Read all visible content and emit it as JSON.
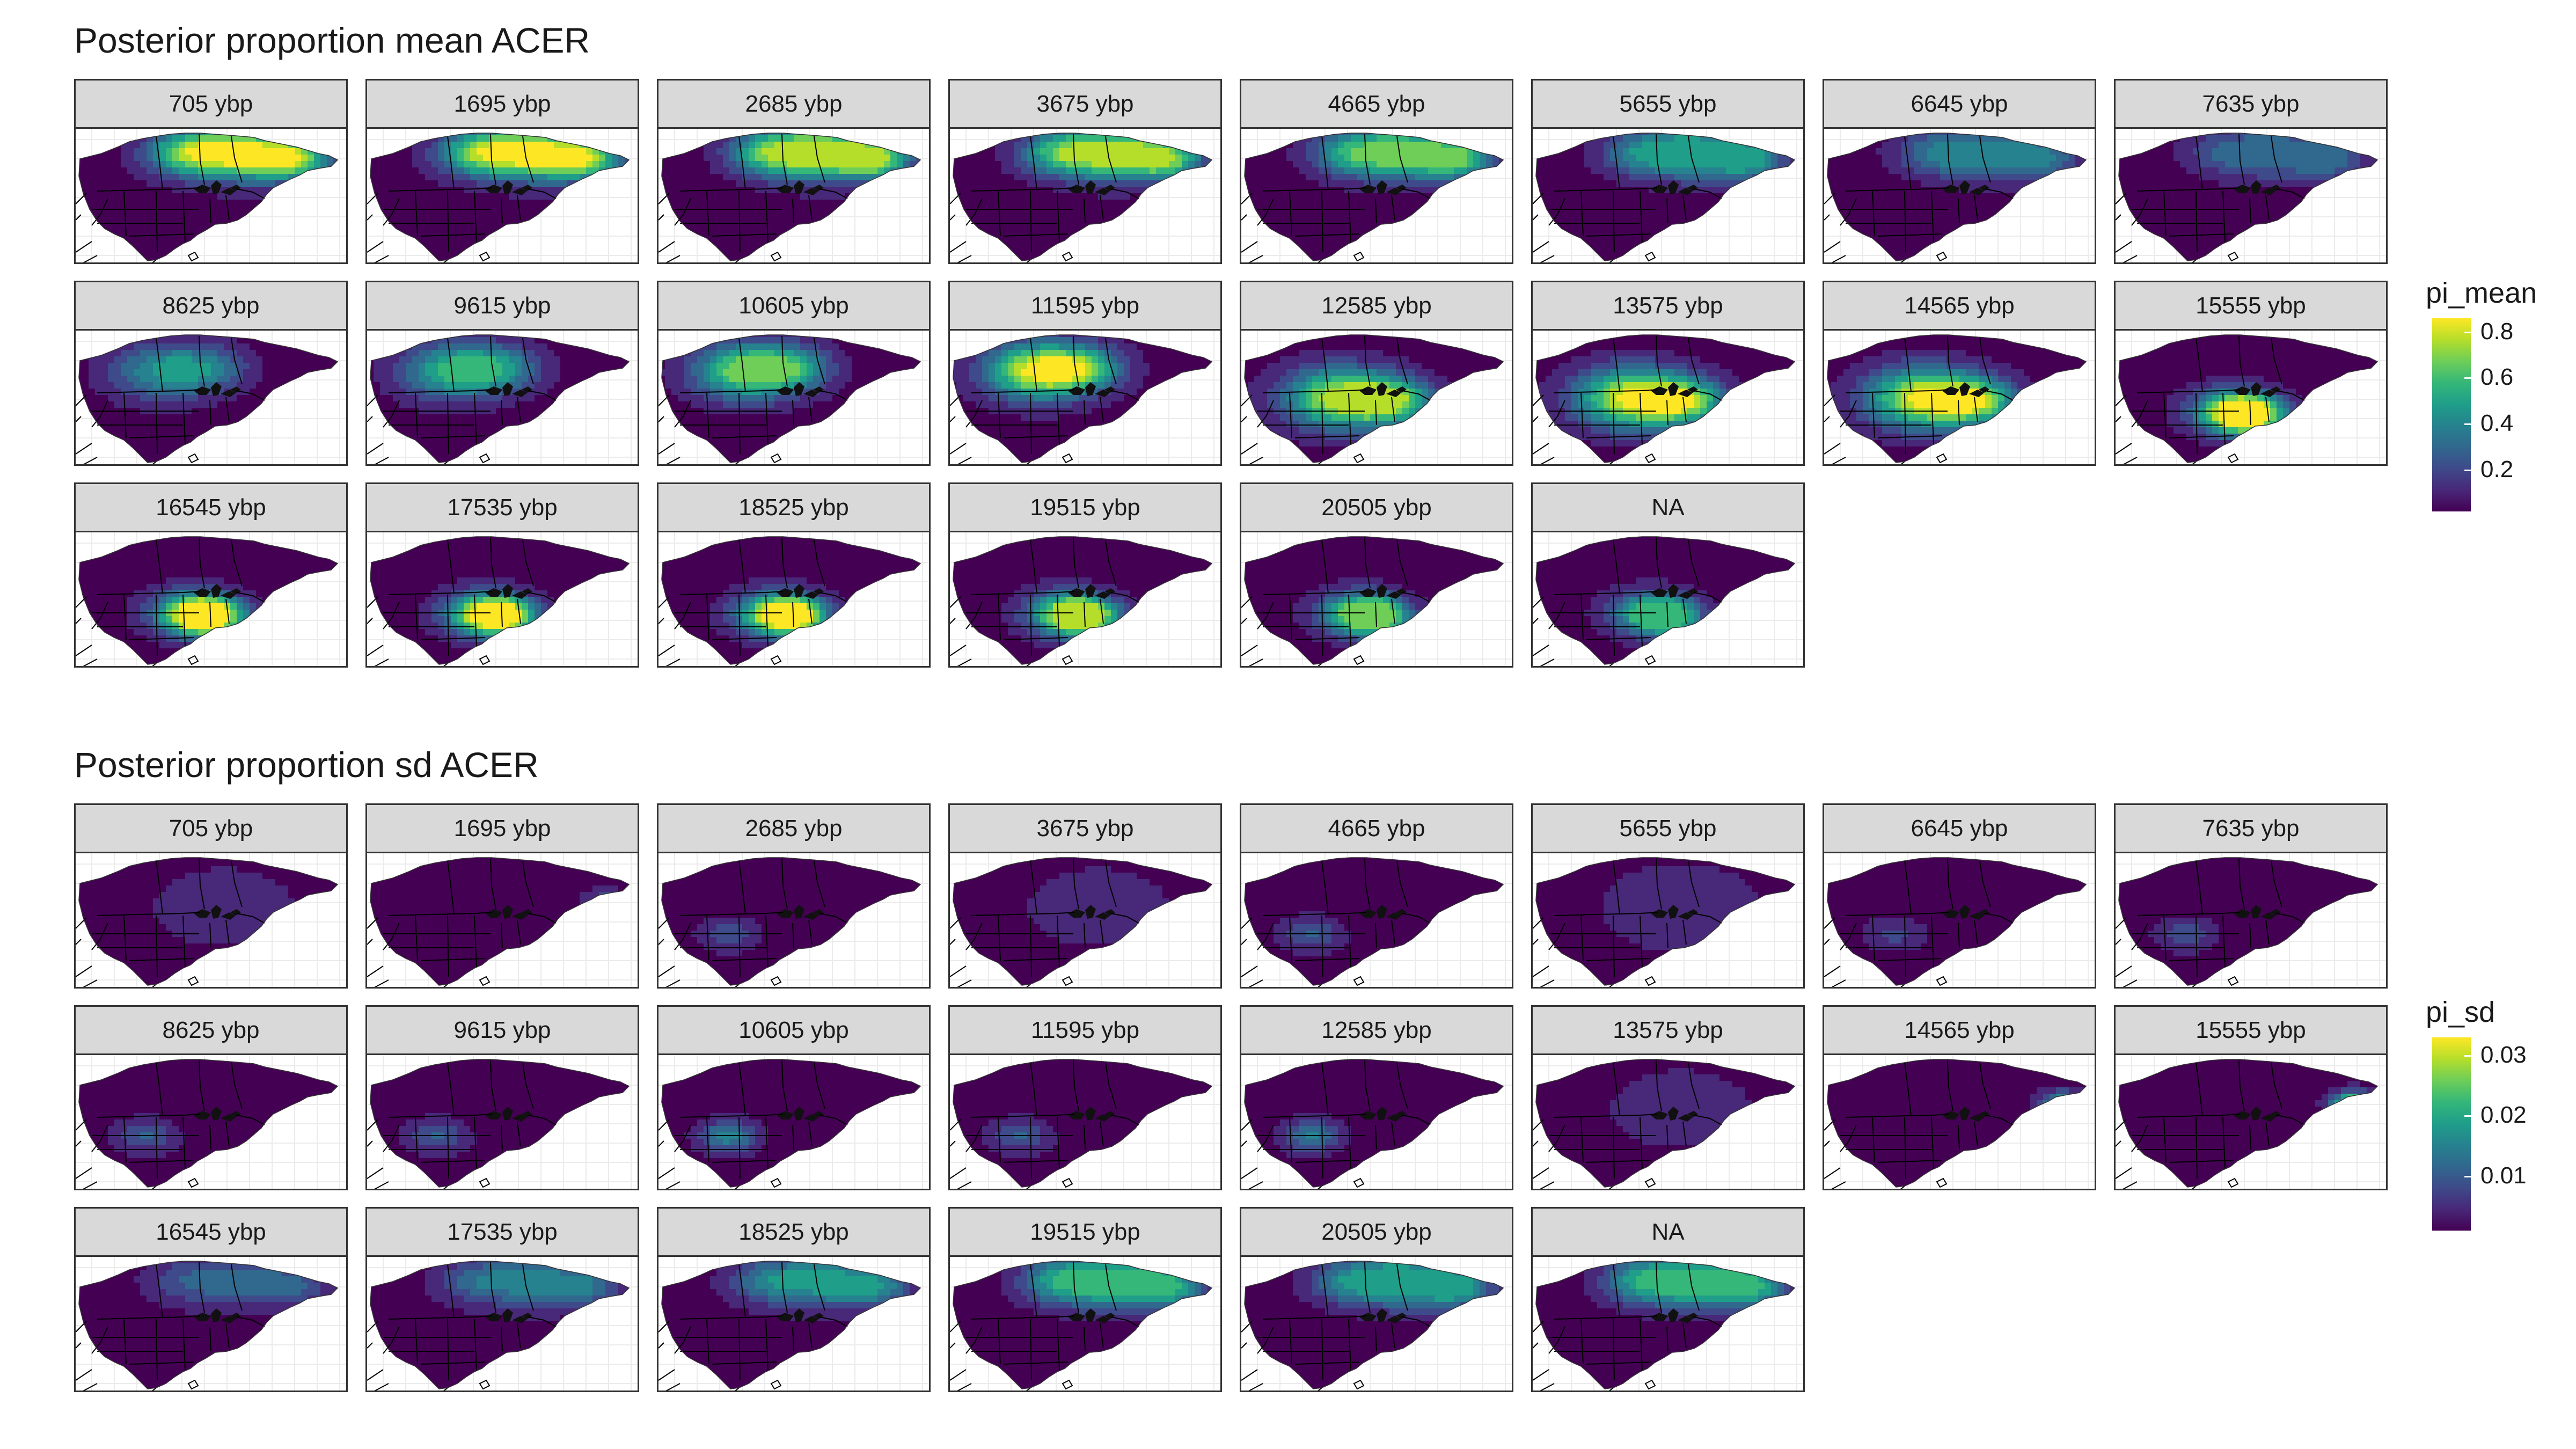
{
  "sections": [
    {
      "title": "Posterior proportion mean ACER",
      "variable": "pi_mean",
      "legend": {
        "title": "pi_mean",
        "ticks": [
          "0.8",
          "0.6",
          "0.4",
          "0.2"
        ],
        "tick_values": [
          0.8,
          0.6,
          0.4,
          0.2
        ],
        "range": [
          0.02,
          0.86
        ]
      },
      "panels": [
        "705 ybp",
        "1695 ybp",
        "2685 ybp",
        "3675 ybp",
        "4665 ybp",
        "5655 ybp",
        "6645 ybp",
        "7635 ybp",
        "8625 ybp",
        "9615 ybp",
        "10605 ybp",
        "11595 ybp",
        "12585 ybp",
        "13575 ybp",
        "14565 ybp",
        "15555 ybp",
        "16545 ybp",
        "17535 ybp",
        "18525 ybp",
        "19515 ybp",
        "20505 ybp",
        "NA"
      ]
    },
    {
      "title": "Posterior proportion sd ACER",
      "variable": "pi_sd",
      "legend": {
        "title": "pi_sd",
        "ticks": [
          "0.03",
          "0.02",
          "0.01"
        ],
        "tick_values": [
          0.03,
          0.02,
          0.01
        ],
        "range": [
          0.001,
          0.033
        ]
      },
      "panels": [
        "705 ybp",
        "1695 ybp",
        "2685 ybp",
        "3675 ybp",
        "4665 ybp",
        "5655 ybp",
        "6645 ybp",
        "7635 ybp",
        "8625 ybp",
        "9615 ybp",
        "10605 ybp",
        "11595 ybp",
        "12585 ybp",
        "13575 ybp",
        "14565 ybp",
        "15555 ybp",
        "16545 ybp",
        "17535 ybp",
        "18525 ybp",
        "19515 ybp",
        "20505 ybp",
        "NA"
      ]
    }
  ],
  "colors": {
    "viridis": [
      "#440154",
      "#482878",
      "#3e4a89",
      "#31688e",
      "#26828e",
      "#1f9e89",
      "#35b779",
      "#6ece58",
      "#b5de2b",
      "#fde725"
    ],
    "background": "#ffffff",
    "strip": "#d9d9d9",
    "border": "#333333",
    "grid": "#ebebeb"
  }
}
